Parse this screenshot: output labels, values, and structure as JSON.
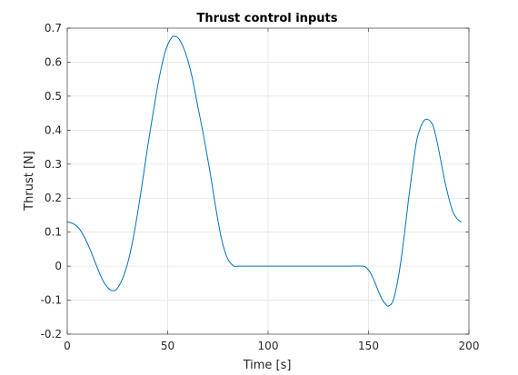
{
  "chart_data": {
    "type": "line",
    "title": "Thrust control inputs",
    "xlabel": "Time [s]",
    "ylabel": "Thrust [N]",
    "xlim": [
      0,
      200
    ],
    "ylim": [
      -0.2,
      0.7
    ],
    "xticks": [
      0,
      50,
      100,
      150,
      200
    ],
    "xtick_labels": [
      "0",
      "50",
      "100",
      "150",
      "200"
    ],
    "yticks": [
      -0.2,
      -0.1,
      0,
      0.1,
      0.2,
      0.3,
      0.4,
      0.5,
      0.6,
      0.7
    ],
    "ytick_labels": [
      "-0.2",
      "-0.1",
      "0",
      "0.1",
      "0.2",
      "0.3",
      "0.4",
      "0.5",
      "0.6",
      "0.7"
    ],
    "grid": true,
    "series": [
      {
        "color": "#0072BD",
        "x": [
          0,
          3,
          6,
          9,
          12,
          15,
          18,
          21,
          23,
          25,
          28,
          31,
          34,
          37,
          40,
          43,
          46,
          49,
          52,
          54,
          56,
          59,
          62,
          65,
          68,
          71,
          74,
          77,
          80,
          83,
          85,
          90,
          100,
          110,
          120,
          130,
          140,
          147,
          149,
          151,
          153,
          155,
          157,
          159,
          160,
          162,
          164,
          166,
          168,
          170,
          172,
          174,
          176,
          178,
          180,
          182,
          184,
          186,
          188,
          190,
          192,
          194,
          196
        ],
        "y": [
          0.13,
          0.125,
          0.11,
          0.08,
          0.04,
          -0.005,
          -0.045,
          -0.068,
          -0.072,
          -0.065,
          -0.03,
          0.03,
          0.12,
          0.23,
          0.35,
          0.46,
          0.56,
          0.635,
          0.672,
          0.675,
          0.665,
          0.625,
          0.56,
          0.47,
          0.38,
          0.28,
          0.17,
          0.075,
          0.02,
          0.0,
          0.0,
          0.0,
          0.0,
          0.0,
          0.0,
          0.0,
          0.0,
          0.0,
          -0.005,
          -0.02,
          -0.045,
          -0.075,
          -0.1,
          -0.115,
          -0.117,
          -0.105,
          -0.06,
          0.01,
          0.1,
          0.2,
          0.29,
          0.37,
          0.41,
          0.43,
          0.43,
          0.415,
          0.37,
          0.31,
          0.25,
          0.2,
          0.16,
          0.14,
          0.13
        ]
      }
    ]
  }
}
